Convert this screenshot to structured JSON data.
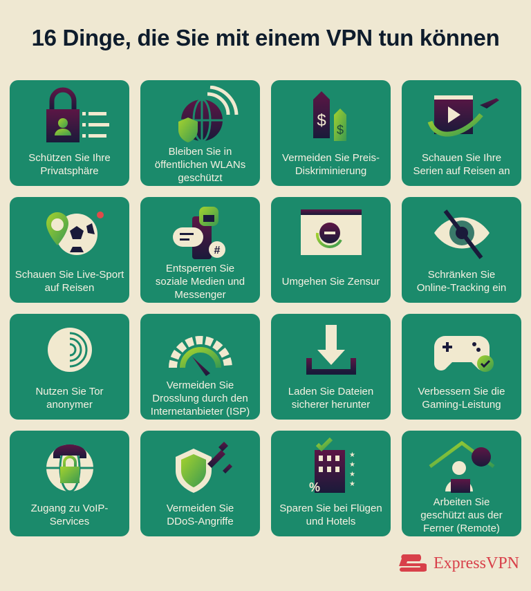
{
  "title": "16 Dinge, die Sie mit einem VPN tun können",
  "colors": {
    "background": "#efe8d2",
    "tile": "#1b8a6b",
    "title": "#0e1c2c",
    "icon_dark": "#5c1645",
    "icon_accent": "#a6d22e",
    "cream": "#f1e9cf",
    "brand": "#d8404a"
  },
  "tiles": [
    {
      "label": "Schützen Sie Ihre\nPrivatsphäre",
      "icon": "lock-icon"
    },
    {
      "label": "Bleiben Sie in\nöffentlichen WLANs\ngeschützt",
      "icon": "globe-wifi-shield-icon"
    },
    {
      "label": "Vermeiden Sie Preis-\nDiskriminierung",
      "icon": "price-tag-icon"
    },
    {
      "label": "Schauen Sie Ihre\nSerien auf Reisen an",
      "icon": "video-plane-icon"
    },
    {
      "label": "Schauen Sie Live-Sport\nauf Reisen",
      "icon": "soccer-ball-icon"
    },
    {
      "label": "Entsperren Sie\nsoziale Medien und\nMessenger",
      "icon": "chat-unlock-icon"
    },
    {
      "label": "Umgehen Sie Zensur",
      "icon": "browser-blocked-icon"
    },
    {
      "label": "Schränken Sie\nOnline-Tracking ein",
      "icon": "eye-slash-icon"
    },
    {
      "label": "Nutzen Sie Tor\nanonymer",
      "icon": "tor-onion-icon"
    },
    {
      "label": "Vermeiden Sie\nDrosslung durch den\nInternetanbieter (ISP)",
      "icon": "speedometer-icon"
    },
    {
      "label": "Laden Sie Dateien\nsicherer herunter",
      "icon": "download-icon"
    },
    {
      "label": "Verbessern Sie die\nGaming-Leistung",
      "icon": "gamepad-icon"
    },
    {
      "label": "Zugang zu VoIP-\nServices",
      "icon": "globe-phone-lock-icon"
    },
    {
      "label": "Vermeiden Sie\nDDoS-Angriffe",
      "icon": "shield-missiles-icon"
    },
    {
      "label": "Sparen Sie bei Flügen\nund Hotels",
      "icon": "hotel-icon"
    },
    {
      "label": "Arbeiten Sie\ngeschützt aus der\nFerner (Remote)",
      "icon": "remote-work-icon"
    }
  ],
  "brand": {
    "name": "ExpressVPN"
  }
}
